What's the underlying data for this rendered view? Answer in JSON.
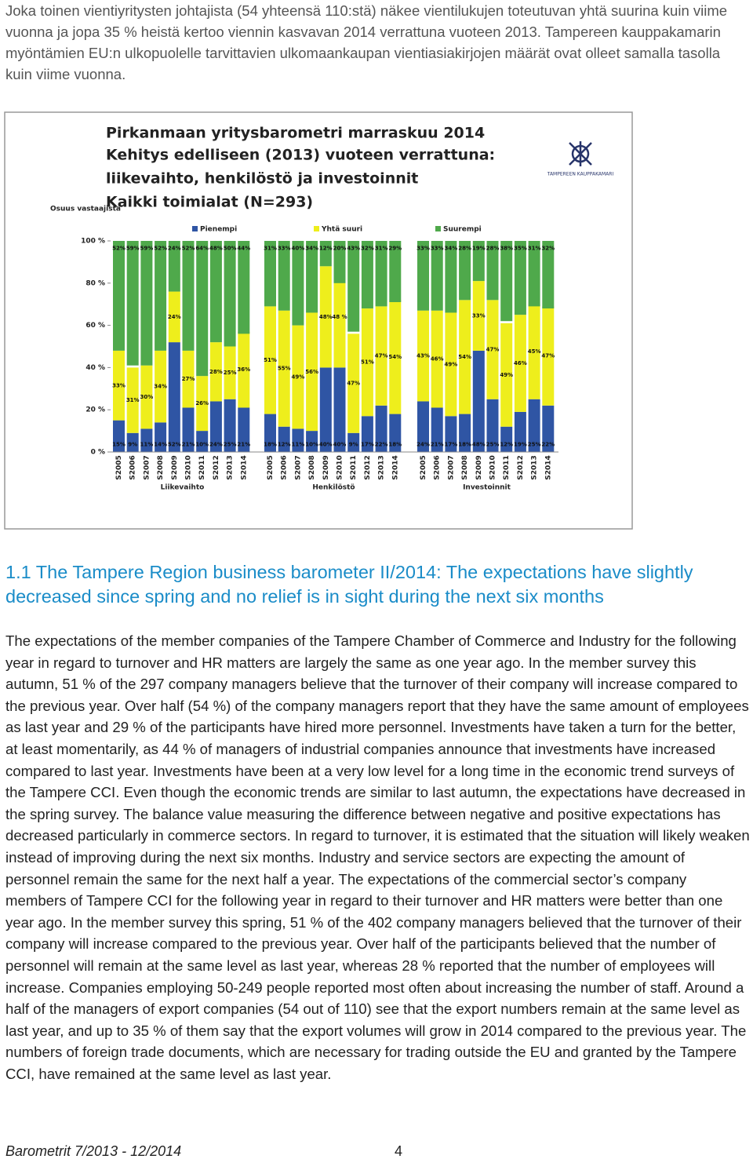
{
  "intro": "Joka toinen vientiyritysten johtajista (54 yhteensä 110:stä) näkee vientilukujen toteutuvan yhtä suurina kuin viime vuonna ja jopa 35 % heistä kertoo viennin kasvavan 2014 verrattuna vuoteen 2013. Tampereen kauppakamarin myöntämien EU:n ulkopuolelle tarvittavien ulkomaankaupan vientiasiakirjojen määrät ovat olleet samalla tasolla kuin viime vuonna.",
  "chart_data": {
    "type": "bar",
    "stacked": true,
    "title": [
      "Pirkanmaan yritysbarometri marraskuu 2014",
      "Kehitys edelliseen (2013) vuoteen verrattuna:",
      "liikevaihto, henkilöstö ja investoinnit",
      "Kaikki toimialat (N=293)"
    ],
    "y_label": "Osuus vastaajista",
    "logo": "TAMPEREEN KAUPPAKAMARI",
    "ylim": [
      0,
      100
    ],
    "yticks": [
      {
        "value": 0,
        "label": "0 %"
      },
      {
        "value": 20,
        "label": "20 %"
      },
      {
        "value": 40,
        "label": "40 %"
      },
      {
        "value": 60,
        "label": "60 %"
      },
      {
        "value": 80,
        "label": "80 %"
      },
      {
        "value": 100,
        "label": "100 %"
      }
    ],
    "categories": [
      "S2005",
      "S2006",
      "S2007",
      "S2008",
      "S2009",
      "S2010",
      "S2011",
      "S2012",
      "S2013",
      "S2014"
    ],
    "series": [
      {
        "name": "Pienempi",
        "color": "#2f55a4"
      },
      {
        "name": "Yhtä suuri",
        "color": "#eeee1c"
      },
      {
        "name": "Suurempi",
        "color": "#4fa94b"
      }
    ],
    "groups": [
      {
        "name": "Liikevaihto",
        "values": [
          [
            15,
            9,
            11,
            14,
            52,
            21,
            10,
            24,
            25,
            21
          ],
          [
            33,
            31,
            30,
            34,
            24,
            27,
            26,
            28,
            25,
            36
          ],
          [
            52,
            59,
            59,
            52,
            24,
            52,
            64,
            48,
            50,
            44
          ]
        ],
        "value_labels": [
          [
            "15%",
            "9%",
            "11%",
            "14%",
            "52%",
            "21%",
            "10%",
            "24%",
            "25%",
            "21%"
          ],
          [
            "33%",
            "31%",
            "30%",
            "34%",
            "24%",
            "27%",
            "26%",
            "28%",
            "25%",
            "36%"
          ],
          [
            "52%",
            "59%",
            "59%",
            "52%",
            "24%",
            "52%",
            "64%",
            "48%",
            "50%",
            "44%"
          ]
        ]
      },
      {
        "name": "Henkilöstö",
        "values": [
          [
            18,
            12,
            11,
            10,
            40,
            40,
            9,
            17,
            22,
            18
          ],
          [
            51,
            55,
            49,
            56,
            48,
            48,
            47,
            51,
            47,
            54
          ],
          [
            31,
            33,
            40,
            34,
            12,
            20,
            43,
            32,
            31,
            29
          ]
        ],
        "value_labels": [
          [
            "18%",
            "12%",
            "11%",
            "10%",
            "40%",
            "40%",
            "9%",
            "17%",
            "22%",
            "18%"
          ],
          [
            "51%",
            "55%",
            "49%",
            "56%",
            "48%",
            "48 %",
            "47%",
            "51%",
            "47%",
            "54%"
          ],
          [
            "31%",
            "33%",
            "40%",
            "34%",
            "12%",
            "20%",
            "43%",
            "32%",
            "31%",
            "29%"
          ]
        ]
      },
      {
        "name": "Investoinnit",
        "values": [
          [
            24,
            21,
            17,
            18,
            48,
            25,
            12,
            19,
            25,
            22
          ],
          [
            43,
            46,
            49,
            54,
            33,
            47,
            49,
            46,
            45,
            47
          ],
          [
            33,
            33,
            34,
            28,
            19,
            28,
            38,
            35,
            31,
            32
          ]
        ],
        "value_labels": [
          [
            "24%",
            "21%",
            "17%",
            "18%",
            "48%",
            "25%",
            "12%",
            "19%",
            "25%",
            "22%"
          ],
          [
            "43%",
            "46%",
            "49%",
            "54%",
            "33%",
            "47%",
            "49%",
            "46%",
            "45%",
            "47%"
          ],
          [
            "33%",
            "33%",
            "34%",
            "28%",
            "19%",
            "28%",
            "38%",
            "35%",
            "31%",
            "32%"
          ]
        ]
      }
    ]
  },
  "heading": "1.1 The Tampere Region business barometer II/2014: The expectations have slightly decreased since spring and no relief is in sight during the next six months",
  "body": "The expectations of the member companies of the Tampere Chamber of Commerce and Industry for the following year in regard to turnover and HR matters are largely the same as one year ago. In the member survey this autumn, 51 % of the 297 company managers believe that the turnover of their company will increase compared to the previous year. Over half (54 %) of the company managers report that they have the same amount of employees as last year and 29 % of the participants have hired more personnel. Investments have taken a turn for the better, at least momentarily, as 44 % of managers of industrial companies announce that investments have increased compared to last year. Investments have been at a very low level for a long time in the economic trend surveys of the Tampere CCI. Even though the economic trends are similar to last autumn, the expectations have decreased in the spring survey. The balance value measuring the difference between negative and positive expectations has decreased particularly in commerce sectors. In regard to turnover, it is estimated that the situation will likely weaken instead of improving during the next six months. Industry and service sectors are expecting the amount of personnel remain the same for the next half a year. The expectations of the commercial sector’s company members of Tampere CCI for the following year in regard to their turnover and HR matters were better than one year ago. In the member survey this spring, 51 % of the 402 company managers believed that the turnover of their company will increase compared to the previous year. Over half of the participants believed that the number of personnel will remain at the same level as last year, whereas 28 % reported that the number of employees will increase. Companies employing 50-249 people reported most often about increasing the number of staff. Around a half of the managers of export companies (54 out of 110) see that the export numbers remain at the same level as last year, and up to 35 % of them say that the export volumes will grow in 2014 compared to the previous year. The numbers of foreign trade documents, which are necessary for trading outside the EU and granted by the Tampere CCI, have remained at the same level as last year.",
  "footer": {
    "left": "Barometrit 7/2013 - 12/2014",
    "page": "4"
  }
}
